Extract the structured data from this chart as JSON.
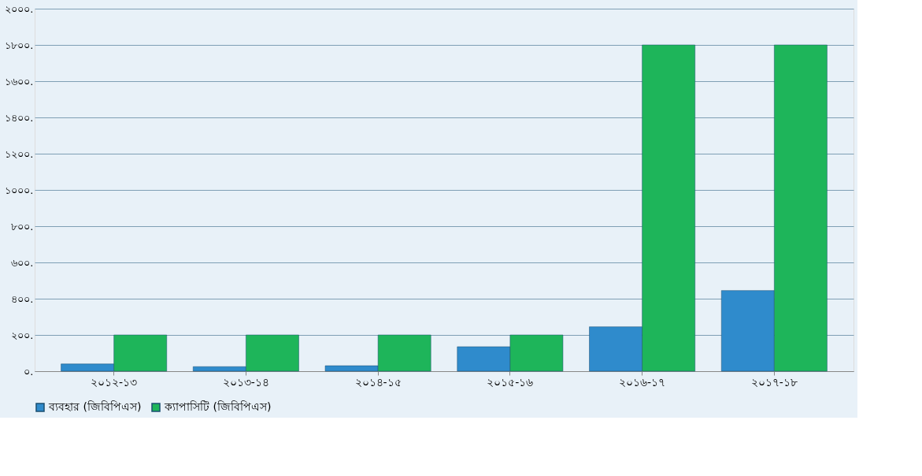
{
  "chart_data": {
    "type": "bar",
    "categories": [
      "২০১২-১৩",
      "২০১৩-১৪",
      "২০১৪-১৫",
      "২০১৫-১৬",
      "২০১৬-১৭",
      "২০১৭-১৮"
    ],
    "series": [
      {
        "name": "ব্যবহার (জিবিপিএস)",
        "color": "#2f8bcc",
        "values": [
          40,
          25,
          30,
          135,
          245,
          445
        ]
      },
      {
        "name": "ক্যাপাসিটি (জিবিপিএস)",
        "color": "#1eb55a",
        "values": [
          200,
          200,
          200,
          200,
          1800,
          1800
        ]
      }
    ],
    "ylim": [
      0,
      2000
    ],
    "yticks": [
      {
        "value": 0,
        "label": "০."
      },
      {
        "value": 200,
        "label": "২০০."
      },
      {
        "value": 400,
        "label": "৪০০."
      },
      {
        "value": 600,
        "label": "৬০০."
      },
      {
        "value": 800,
        "label": "৮০০."
      },
      {
        "value": 1000,
        "label": "১০০০."
      },
      {
        "value": 1200,
        "label": "১২০০."
      },
      {
        "value": 1400,
        "label": "১৪০০."
      },
      {
        "value": 1600,
        "label": "১৬০০."
      },
      {
        "value": 1800,
        "label": "১৮০০."
      },
      {
        "value": 2000,
        "label": "২০০০."
      }
    ],
    "grid": "y",
    "legend": "bottom"
  }
}
